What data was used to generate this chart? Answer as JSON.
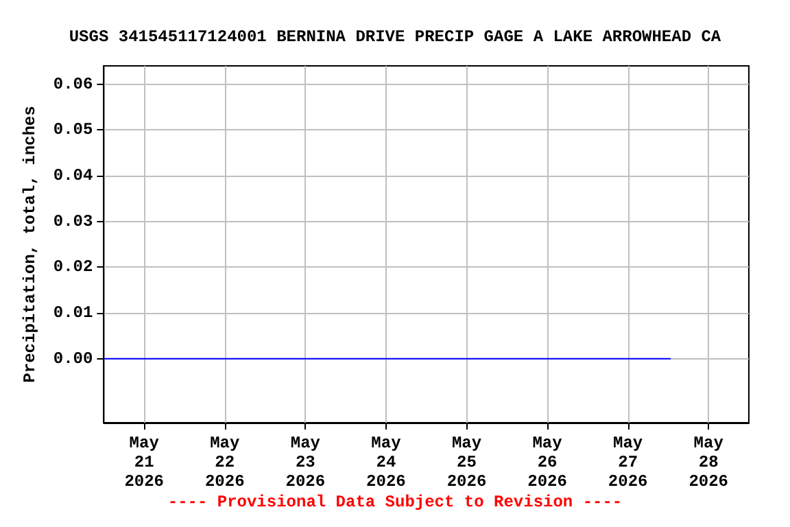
{
  "chart_data": {
    "type": "line",
    "title": "USGS 341545117124001 BERNINA DRIVE PRECIP GAGE A LAKE ARROWHEAD CA",
    "ylabel": "Precipitation, total, inches",
    "annotations": [
      "---- Provisional Data Subject to Revision ----"
    ],
    "series": [
      {
        "color": "#0000ff",
        "x": [
          "2026-05-20T12:00",
          "2026-05-27T12:45"
        ],
        "values": [
          0,
          0
        ]
      }
    ],
    "xlim": [
      "2026-05-20T12:00",
      "2026-05-28T12:00"
    ],
    "xticks": [
      {
        "value": "2026-05-21",
        "label": "May\n21\n2026"
      },
      {
        "value": "2026-05-22",
        "label": "May\n22\n2026"
      },
      {
        "value": "2026-05-23",
        "label": "May\n23\n2026"
      },
      {
        "value": "2026-05-24",
        "label": "May\n24\n2026"
      },
      {
        "value": "2026-05-25",
        "label": "May\n25\n2026"
      },
      {
        "value": "2026-05-26",
        "label": "May\n26\n2026"
      },
      {
        "value": "2026-05-27",
        "label": "May\n27\n2026"
      },
      {
        "value": "2026-05-28",
        "label": "May\n28\n2026"
      }
    ],
    "ylim": [
      -0.014,
      0.064
    ],
    "yticks": [
      {
        "value": 0,
        "label": "0.00"
      },
      {
        "value": 0.01,
        "label": "0.01"
      },
      {
        "value": 0.02,
        "label": "0.02"
      },
      {
        "value": 0.03,
        "label": "0.03"
      },
      {
        "value": 0.04,
        "label": "0.04"
      },
      {
        "value": 0.05,
        "label": "0.05"
      },
      {
        "value": 0.06,
        "label": "0.06"
      }
    ],
    "grid": true,
    "marker": "none",
    "line_style": "solid"
  }
}
